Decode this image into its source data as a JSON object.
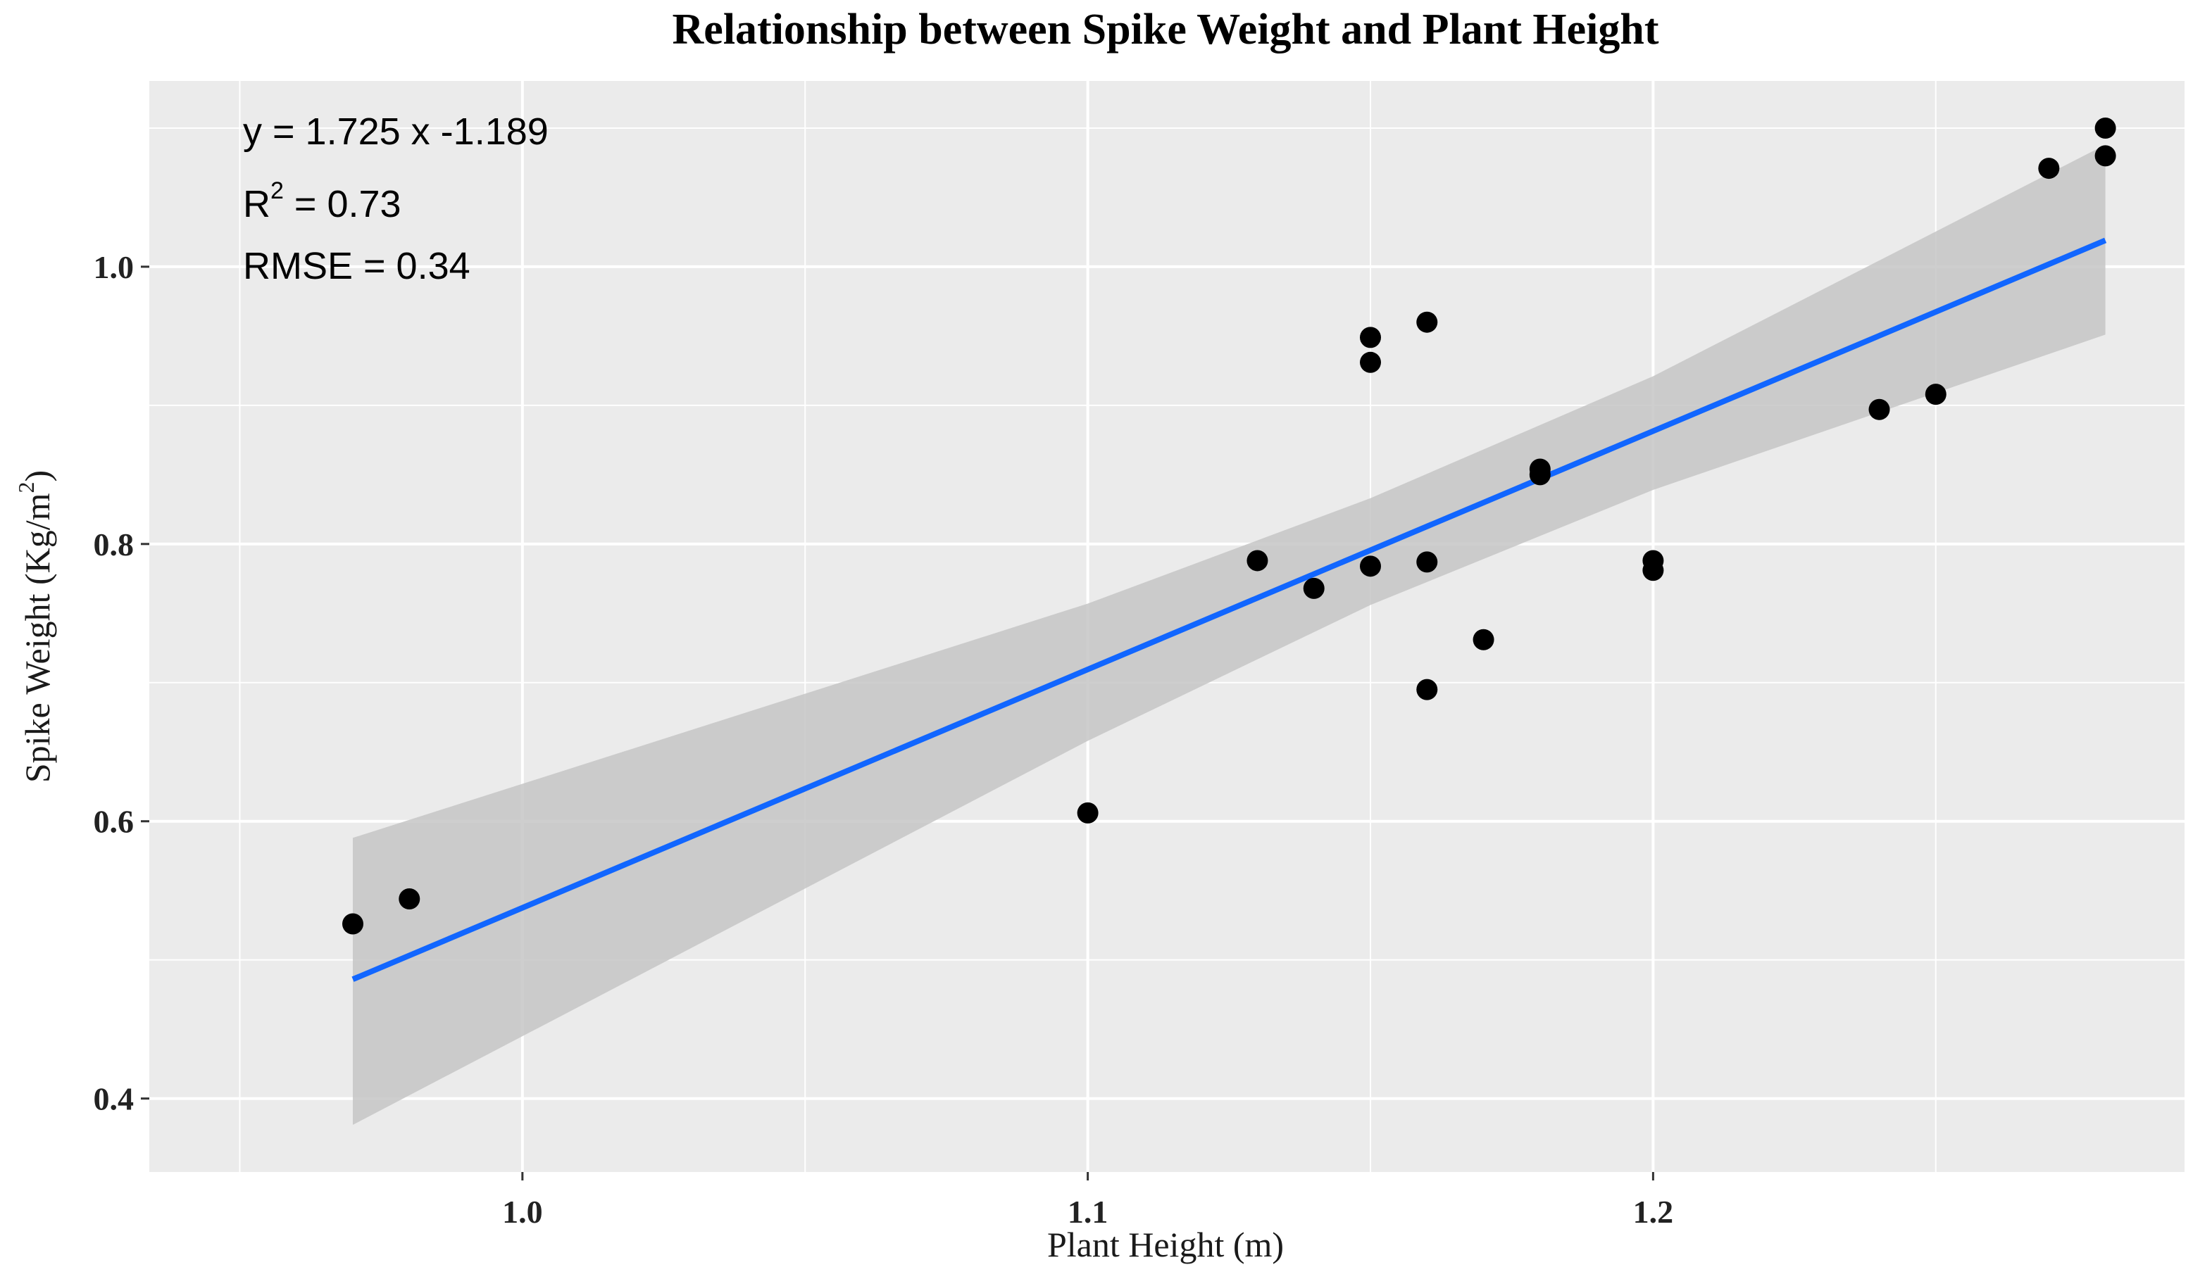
{
  "chart_data": {
    "type": "scatter",
    "title": "Relationship between Spike Weight and Plant Height",
    "xlabel": "Plant Height (m)",
    "ylabel": "Spike Weight (Kg/m",
    "ylabel_sup": "2",
    "ylabel_end": ")",
    "xlim": [
      0.934,
      1.294
    ],
    "ylim": [
      0.347,
      1.134
    ],
    "x_ticks": [
      1.0,
      1.1,
      1.2
    ],
    "x_tick_labels": [
      "1.0",
      "1.1",
      "1.2"
    ],
    "x_minor": [
      0.95,
      1.05,
      1.15,
      1.25
    ],
    "y_ticks": [
      0.4,
      0.6,
      0.8,
      1.0
    ],
    "y_tick_labels": [
      "0.4",
      "0.6",
      "0.8",
      "1.0"
    ],
    "y_minor": [
      0.5,
      0.7,
      0.9,
      1.1
    ],
    "grid": true,
    "points": [
      {
        "x": 0.97,
        "y": 0.526
      },
      {
        "x": 0.98,
        "y": 0.544
      },
      {
        "x": 1.1,
        "y": 0.606
      },
      {
        "x": 1.13,
        "y": 0.788
      },
      {
        "x": 1.14,
        "y": 0.768
      },
      {
        "x": 1.15,
        "y": 0.784
      },
      {
        "x": 1.15,
        "y": 0.931
      },
      {
        "x": 1.15,
        "y": 0.949
      },
      {
        "x": 1.16,
        "y": 0.96
      },
      {
        "x": 1.16,
        "y": 0.787
      },
      {
        "x": 1.16,
        "y": 0.695
      },
      {
        "x": 1.17,
        "y": 0.731
      },
      {
        "x": 1.18,
        "y": 0.854
      },
      {
        "x": 1.18,
        "y": 0.85
      },
      {
        "x": 1.2,
        "y": 0.788
      },
      {
        "x": 1.2,
        "y": 0.781
      },
      {
        "x": 1.24,
        "y": 0.897
      },
      {
        "x": 1.25,
        "y": 0.908
      },
      {
        "x": 1.27,
        "y": 1.071
      },
      {
        "x": 1.28,
        "y": 1.08
      },
      {
        "x": 1.28,
        "y": 1.1
      }
    ],
    "fit_line": {
      "x": [
        0.97,
        1.28
      ],
      "y": [
        0.486,
        1.019
      ]
    },
    "confidence_band": {
      "x": [
        0.97,
        1.1,
        1.15,
        1.2,
        1.28
      ],
      "upper": [
        0.588,
        0.757,
        0.833,
        0.921,
        1.088
      ],
      "lower": [
        0.381,
        0.658,
        0.756,
        0.839,
        0.951
      ]
    },
    "annotations": {
      "equation": "y = 1.725  x   -1.189",
      "r2_prefix": "R",
      "r2_sup": "2",
      "r2_value": " = 0.73",
      "rmse": "RMSE = 0.34"
    },
    "colors": {
      "panel_bg": "#ebebeb",
      "grid": "#ffffff",
      "point": "#000000",
      "line": "#1166ff",
      "band": "#c6c6c6"
    }
  }
}
